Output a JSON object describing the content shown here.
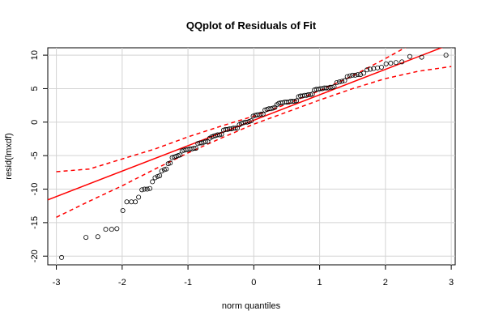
{
  "chart_data": {
    "type": "scatter",
    "title": "QQplot of Residuals of Fit",
    "xlabel": "norm quantiles",
    "ylabel": "resid(lmxdf)",
    "x": [
      -2.92,
      -2.55,
      -2.37,
      -2.25,
      -2.16,
      -2.08,
      -1.99,
      -1.93,
      -1.86,
      -1.8,
      -1.75,
      -1.7,
      -1.66,
      -1.62,
      -1.58,
      -1.54,
      -1.5,
      -1.46,
      -1.43,
      -1.4,
      -1.36,
      -1.33,
      -1.3,
      -1.27,
      -1.24,
      -1.21,
      -1.18,
      -1.15,
      -1.12,
      -1.09,
      -1.06,
      -1.03,
      -1.0,
      -0.97,
      -0.94,
      -0.91,
      -0.88,
      -0.85,
      -0.82,
      -0.79,
      -0.76,
      -0.73,
      -0.7,
      -0.67,
      -0.64,
      -0.61,
      -0.58,
      -0.55,
      -0.52,
      -0.49,
      -0.46,
      -0.43,
      -0.4,
      -0.37,
      -0.34,
      -0.31,
      -0.28,
      -0.25,
      -0.22,
      -0.19,
      -0.16,
      -0.13,
      -0.1,
      -0.07,
      -0.04,
      -0.01,
      0.02,
      0.05,
      0.08,
      0.11,
      0.14,
      0.17,
      0.2,
      0.23,
      0.26,
      0.29,
      0.32,
      0.35,
      0.38,
      0.41,
      0.44,
      0.47,
      0.5,
      0.53,
      0.56,
      0.59,
      0.62,
      0.65,
      0.68,
      0.71,
      0.74,
      0.77,
      0.8,
      0.83,
      0.86,
      0.89,
      0.92,
      0.95,
      0.98,
      1.01,
      1.04,
      1.07,
      1.1,
      1.13,
      1.16,
      1.19,
      1.22,
      1.26,
      1.3,
      1.34,
      1.38,
      1.42,
      1.46,
      1.5,
      1.54,
      1.58,
      1.62,
      1.67,
      1.72,
      1.77,
      1.82,
      1.88,
      1.94,
      2.01,
      2.08,
      2.16,
      2.25,
      2.37,
      2.55,
      2.92
    ],
    "values": [
      -20.2,
      -17.2,
      -17.1,
      -16,
      -16,
      -15.9,
      -13.2,
      -11.9,
      -11.9,
      -11.9,
      -11.2,
      -10.1,
      -10,
      -10,
      -9.9,
      -8.9,
      -8.3,
      -8.1,
      -8,
      -7.3,
      -7.1,
      -7,
      -6.2,
      -6.1,
      -5.3,
      -5.2,
      -5.1,
      -5,
      -4.9,
      -4.3,
      -4.2,
      -4.1,
      -4.1,
      -4,
      -4,
      -3.9,
      -3.9,
      -3.2,
      -3.1,
      -3.1,
      -3,
      -2.9,
      -2.9,
      -2.4,
      -2.2,
      -2.1,
      -2,
      -1.9,
      -1.9,
      -1.8,
      -1.2,
      -1.1,
      -1.1,
      -1,
      -1,
      -0.9,
      -0.9,
      -0.9,
      -0.4,
      -0.2,
      -0.1,
      0,
      0,
      0.1,
      0.2,
      0.9,
      1,
      1.1,
      1.1,
      1.2,
      1.2,
      1.8,
      1.9,
      2,
      2,
      2.1,
      2.2,
      2.6,
      2.8,
      2.9,
      2.9,
      3,
      3,
      3,
      3.1,
      3.1,
      3.1,
      3.2,
      3.8,
      3.9,
      3.9,
      4,
      4,
      4.1,
      4.1,
      4.2,
      4.8,
      4.9,
      4.9,
      5,
      5,
      5.1,
      5.1,
      5.1,
      5.2,
      5.2,
      5.3,
      5.9,
      6,
      6.1,
      6.2,
      6.8,
      6.9,
      7,
      7,
      7.1,
      7.1,
      7.3,
      7.8,
      7.9,
      8,
      8.1,
      8.2,
      8.7,
      8.8,
      8.9,
      9,
      9.8,
      9.7,
      10
    ],
    "color": "#000000",
    "qqline": {
      "x": [
        -3.13,
        3.06
      ],
      "values": [
        -11.6,
        11.9
      ],
      "color": "#ff0000"
    },
    "bands": [
      {
        "x": [
          -3,
          -2.5,
          -2,
          -1.5,
          -1,
          -0.5,
          0,
          0.5,
          1,
          1.5,
          2,
          2.5,
          3
        ],
        "values": [
          -7.4,
          -7.0,
          -5.5,
          -4.0,
          -2.2,
          -0.6,
          0.9,
          2.7,
          4.7,
          6.9,
          9.5,
          12.2,
          15
        ],
        "color": "#ff0000"
      },
      {
        "x": [
          -3,
          -2.5,
          -2,
          -1.5,
          -1,
          -0.5,
          0,
          0.5,
          1,
          1.5,
          2,
          2.5,
          3
        ],
        "values": [
          -14.2,
          -11.8,
          -9.5,
          -7.0,
          -4.6,
          -2.4,
          -0.3,
          1.5,
          3.3,
          5.0,
          6.5,
          7.6,
          8.3
        ],
        "color": "#ff0000"
      }
    ],
    "xlim": [
      -3.13,
      3.06
    ],
    "ylim": [
      -21.3,
      11.1
    ],
    "xticks": [
      -3,
      -2,
      -1,
      0,
      1,
      2,
      3
    ],
    "yticks": [
      -20,
      -15,
      -10,
      -5,
      0,
      5,
      10
    ],
    "grid": true
  }
}
